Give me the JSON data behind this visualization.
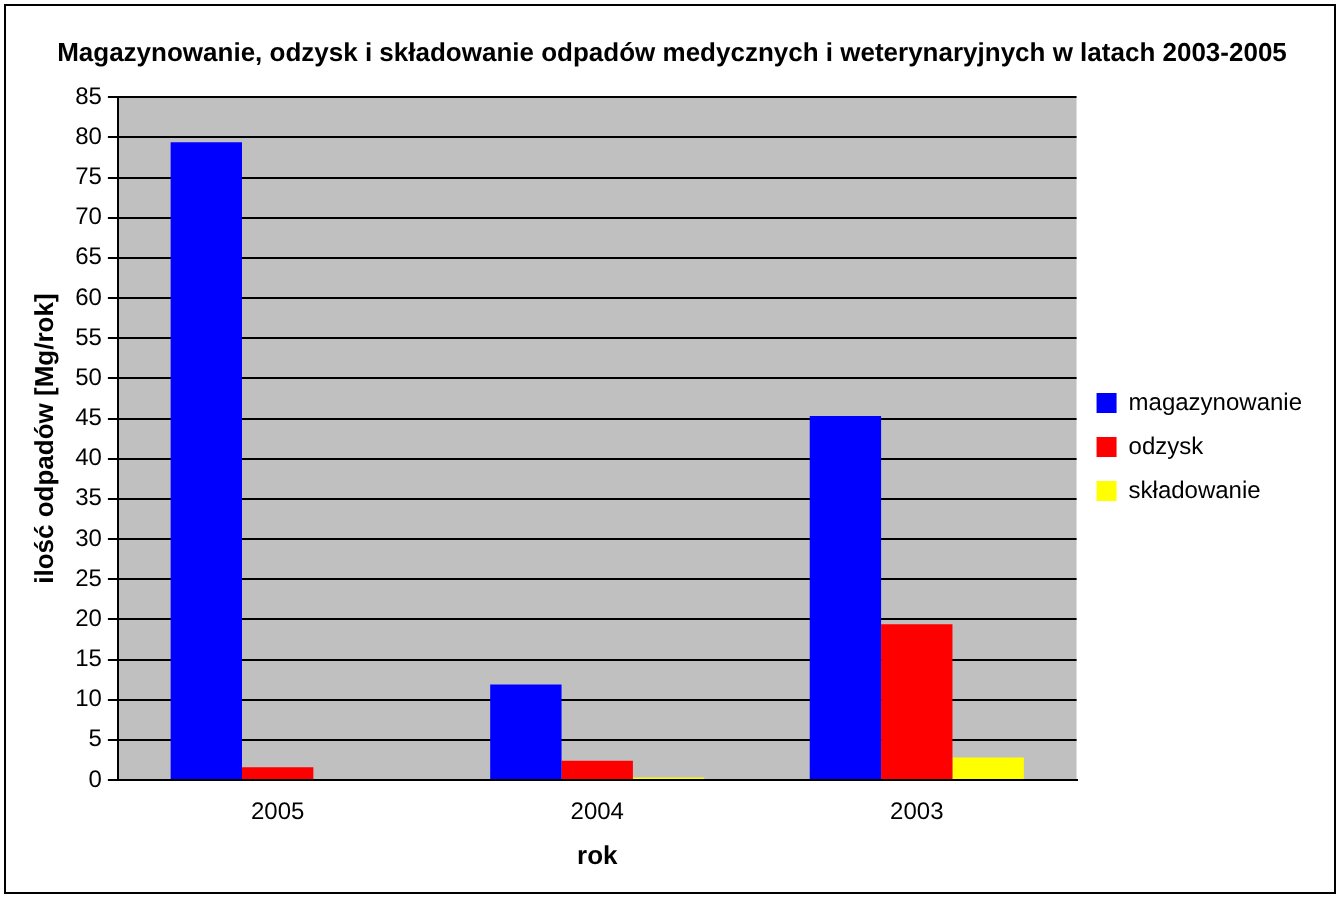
{
  "chart_data": {
    "type": "bar",
    "title": "Magazynowanie, odzysk i składowanie odpadów medycznych i weterynaryjnych w latach 2003-2005",
    "xlabel": "rok",
    "ylabel": "ilość odpadów [Mg/rok]",
    "categories": [
      "2005",
      "2004",
      "2003"
    ],
    "series": [
      {
        "name": "magazynowanie",
        "color": "#0000ff",
        "values": [
          79.4,
          11.9,
          45.3
        ]
      },
      {
        "name": "odzysk",
        "color": "#ff0000",
        "values": [
          1.6,
          2.4,
          19.4
        ]
      },
      {
        "name": "składowanie",
        "color": "#ffff00",
        "values": [
          0,
          0.3,
          2.8
        ]
      }
    ],
    "ylim": [
      0,
      85
    ],
    "yticks": [
      0,
      5,
      10,
      15,
      20,
      25,
      30,
      35,
      40,
      45,
      50,
      55,
      60,
      65,
      70,
      75,
      80,
      85
    ],
    "grid": "y",
    "legend": "right"
  }
}
